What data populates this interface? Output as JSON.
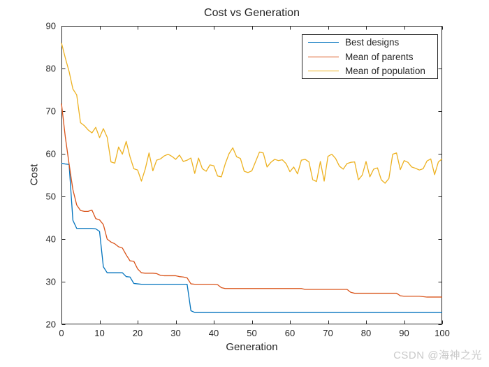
{
  "watermark": "CSDN @海神之光",
  "colors": {
    "axis": "#262626",
    "blue": "#0072BD",
    "orange": "#D95319",
    "yellow": "#EDB120",
    "watermark_gray": "#C9C9C9",
    "background": "#FFFFFF"
  },
  "legend": {
    "position": "top-right-inside",
    "items": [
      {
        "label": "Best designs",
        "color": "#0072BD"
      },
      {
        "label": "Mean of parents",
        "color": "#D95319"
      },
      {
        "label": "Mean of population",
        "color": "#EDB120"
      }
    ]
  },
  "chart_data": {
    "type": "line",
    "title": "Cost vs Generation",
    "xlabel": "Generation",
    "ylabel": "Cost",
    "xlim": [
      0,
      100
    ],
    "ylim": [
      20,
      90
    ],
    "x_ticks": [
      0,
      10,
      20,
      30,
      40,
      50,
      60,
      70,
      80,
      90,
      100
    ],
    "y_ticks": [
      20,
      30,
      40,
      50,
      60,
      70,
      80,
      90
    ],
    "grid": false,
    "box": true,
    "legend_position": "upper right inside",
    "x": [
      0,
      1,
      2,
      3,
      4,
      5,
      6,
      7,
      8,
      9,
      10,
      11,
      12,
      13,
      14,
      15,
      16,
      17,
      18,
      19,
      20,
      21,
      22,
      23,
      24,
      25,
      26,
      27,
      28,
      29,
      30,
      31,
      32,
      33,
      34,
      35,
      36,
      37,
      38,
      39,
      40,
      41,
      42,
      43,
      44,
      45,
      46,
      47,
      48,
      49,
      50,
      51,
      52,
      53,
      54,
      55,
      56,
      57,
      58,
      59,
      60,
      61,
      62,
      63,
      64,
      65,
      66,
      67,
      68,
      69,
      70,
      71,
      72,
      73,
      74,
      75,
      76,
      77,
      78,
      79,
      80,
      81,
      82,
      83,
      84,
      85,
      86,
      87,
      88,
      89,
      90,
      91,
      92,
      93,
      94,
      95,
      96,
      97,
      98,
      99,
      100
    ],
    "series": [
      {
        "name": "Best designs",
        "color": "#0072BD",
        "values": [
          57.8,
          57.6,
          57.5,
          44.4,
          42.5,
          42.5,
          42.5,
          42.5,
          42.5,
          42.4,
          41.8,
          33.5,
          32.1,
          32.1,
          32.1,
          32.1,
          32.1,
          31.2,
          31.1,
          29.6,
          29.5,
          29.4,
          29.4,
          29.4,
          29.4,
          29.4,
          29.4,
          29.4,
          29.4,
          29.4,
          29.4,
          29.4,
          29.4,
          29.4,
          23.2,
          22.8,
          22.8,
          22.8,
          22.8,
          22.8,
          22.8,
          22.8,
          22.8,
          22.8,
          22.8,
          22.8,
          22.8,
          22.8,
          22.8,
          22.8,
          22.8,
          22.8,
          22.8,
          22.8,
          22.8,
          22.8,
          22.8,
          22.8,
          22.8,
          22.8,
          22.8,
          22.8,
          22.8,
          22.8,
          22.8,
          22.8,
          22.8,
          22.8,
          22.8,
          22.8,
          22.8,
          22.8,
          22.8,
          22.8,
          22.8,
          22.8,
          22.8,
          22.8,
          22.8,
          22.8,
          22.8,
          22.8,
          22.8,
          22.8,
          22.8,
          22.8,
          22.8,
          22.8,
          22.8,
          22.8,
          22.8,
          22.8,
          22.8,
          22.8,
          22.8,
          22.8,
          22.8,
          22.8,
          22.8,
          22.8,
          22.8
        ]
      },
      {
        "name": "Mean of parents",
        "color": "#D95319",
        "values": [
          71.8,
          64.0,
          57.6,
          51.6,
          48.0,
          46.7,
          46.5,
          46.5,
          46.8,
          44.8,
          44.5,
          43.4,
          40.0,
          39.3,
          38.9,
          38.2,
          37.9,
          36.3,
          34.9,
          34.8,
          33.0,
          32.1,
          32.0,
          32.0,
          32.0,
          31.9,
          31.5,
          31.4,
          31.4,
          31.4,
          31.4,
          31.2,
          31.1,
          30.9,
          29.5,
          29.4,
          29.4,
          29.4,
          29.4,
          29.4,
          29.4,
          29.3,
          28.6,
          28.4,
          28.4,
          28.4,
          28.4,
          28.4,
          28.4,
          28.4,
          28.4,
          28.4,
          28.4,
          28.4,
          28.4,
          28.4,
          28.4,
          28.4,
          28.4,
          28.4,
          28.4,
          28.4,
          28.4,
          28.4,
          28.2,
          28.2,
          28.2,
          28.2,
          28.2,
          28.2,
          28.2,
          28.2,
          28.2,
          28.2,
          28.2,
          28.2,
          27.5,
          27.3,
          27.3,
          27.3,
          27.3,
          27.3,
          27.3,
          27.3,
          27.3,
          27.3,
          27.3,
          27.3,
          27.3,
          26.7,
          26.6,
          26.6,
          26.6,
          26.6,
          26.6,
          26.5,
          26.4,
          26.4,
          26.4,
          26.4,
          26.4
        ]
      },
      {
        "name": "Mean of population",
        "color": "#EDB120",
        "values": [
          86.0,
          82.5,
          79.3,
          75.2,
          73.8,
          67.3,
          66.6,
          65.6,
          64.9,
          66.2,
          63.8,
          65.9,
          63.9,
          58.1,
          57.8,
          61.6,
          59.9,
          62.9,
          59.3,
          56.5,
          56.2,
          53.6,
          56.4,
          60.2,
          56.0,
          58.5,
          58.8,
          59.5,
          59.9,
          59.4,
          58.7,
          59.7,
          58.2,
          58.5,
          59.0,
          55.4,
          59.0,
          56.5,
          55.9,
          57.4,
          57.2,
          54.8,
          54.6,
          57.6,
          60.0,
          61.4,
          59.3,
          58.9,
          55.9,
          55.6,
          56.0,
          58.2,
          60.4,
          60.2,
          56.9,
          58.0,
          58.7,
          58.4,
          58.6,
          57.7,
          55.8,
          56.9,
          55.3,
          58.5,
          58.7,
          58.1,
          53.9,
          53.5,
          58.2,
          53.6,
          59.4,
          59.9,
          58.9,
          57.1,
          56.4,
          57.7,
          58.0,
          58.1,
          53.9,
          55.0,
          58.2,
          54.6,
          56.4,
          56.7,
          53.9,
          53.1,
          54.2,
          59.9,
          60.2,
          56.3,
          58.4,
          58.0,
          56.9,
          56.6,
          56.2,
          56.5,
          58.3,
          58.8,
          55.1,
          58.1,
          58.8
        ]
      }
    ]
  }
}
